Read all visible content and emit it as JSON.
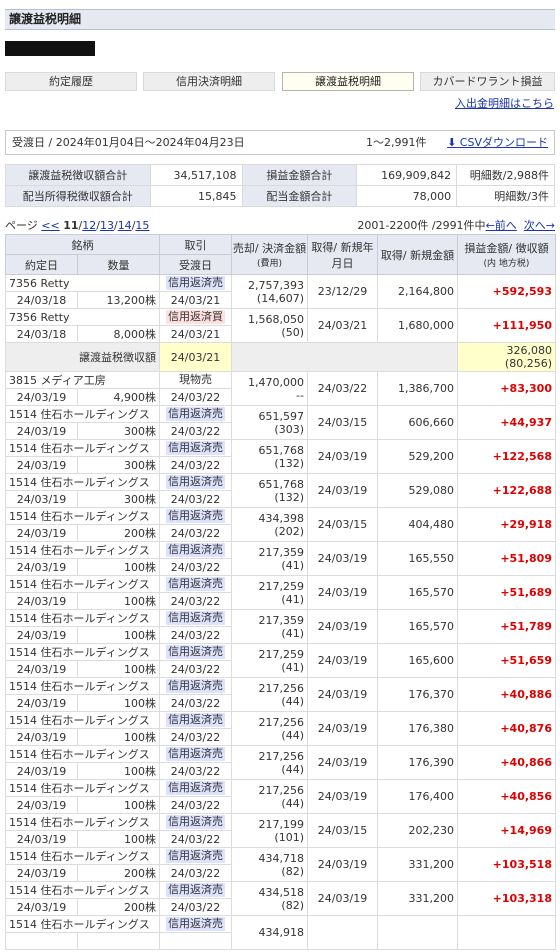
{
  "page_title": "譲渡益税明細",
  "tabs": [
    {
      "label": "約定履歴",
      "active": false
    },
    {
      "label": "信用決済明細",
      "active": false
    },
    {
      "label": "譲渡益税明細",
      "active": true
    },
    {
      "label": "カバードワラント損益",
      "active": false
    }
  ],
  "deposit_link": "入出金明細はこちら",
  "period": {
    "text": "受渡日 / 2024年01月04日～2024年04月23日",
    "count": "1～2,991件",
    "csv_label": "CSVダウンロード"
  },
  "summary": [
    {
      "label": "譲渡益税徴収額合計",
      "value": "34,517,108",
      "label2": "損益金額合計",
      "value2": "169,909,842",
      "extra": "明細数/2,988件"
    },
    {
      "label": "配当所得税徴収額合計",
      "value": "15,845",
      "label2": "配当金額合計",
      "value2": "78,000",
      "extra": "明細数/3件"
    }
  ],
  "pager": {
    "label": "ページ",
    "prev_prev": "<<",
    "current": "11",
    "pages": [
      "12",
      "13",
      "14",
      "15"
    ],
    "range": "2001-2200件 /2991件中",
    "prev": "←前へ",
    "next": "次へ→"
  },
  "headers": {
    "meigara": "銘柄",
    "yakujo": "約定日",
    "suryo": "数量",
    "torihiki": "取引",
    "ukewatashi": "受渡日",
    "baikyaku": "売却/ 決済金額",
    "hiyo": "(費用)",
    "shutoku_date": "取得/ 新規年月日",
    "shutoku_amt": "取得/ 新規金額",
    "soneki": "損益金額/ 徴収額",
    "uchi": "(内 地方税)"
  },
  "rows": [
    {
      "name": "7356 Retty",
      "date": "24/03/18",
      "qty": "13,200株",
      "type": "信用返済売",
      "badge": "blue",
      "settle": "24/03/21",
      "amount": "2,757,393",
      "fee": "(14,607)",
      "acq_date": "23/12/29",
      "acq_amt": "2,164,800",
      "pl": "+592,593"
    },
    {
      "name": "7356 Retty",
      "date": "24/03/18",
      "qty": "8,000株",
      "type": "信用返済買",
      "badge": "pink",
      "settle": "24/03/21",
      "amount": "1,568,050",
      "fee": "(50)",
      "acq_date": "24/03/21",
      "acq_amt": "1,680,000",
      "pl": "+111,950"
    },
    {
      "tax": true,
      "label": "譲渡益税徴収額",
      "settle": "24/03/21",
      "pl": "326,080",
      "local": "(80,256)"
    },
    {
      "name": "3815 メディア工房",
      "date": "24/03/19",
      "qty": "4,900株",
      "type": "現物売",
      "badge": "plain",
      "settle": "24/03/22",
      "amount": "1,470,000",
      "fee": "--",
      "acq_date": "24/03/22",
      "acq_amt": "1,386,700",
      "pl": "+83,300"
    },
    {
      "name": "1514 住石ホールディングス",
      "date": "24/03/19",
      "qty": "300株",
      "type": "信用返済売",
      "badge": "blue",
      "settle": "24/03/22",
      "amount": "651,597",
      "fee": "(303)",
      "acq_date": "24/03/15",
      "acq_amt": "606,660",
      "pl": "+44,937"
    },
    {
      "name": "1514 住石ホールディングス",
      "date": "24/03/19",
      "qty": "300株",
      "type": "信用返済売",
      "badge": "blue",
      "settle": "24/03/22",
      "amount": "651,768",
      "fee": "(132)",
      "acq_date": "24/03/19",
      "acq_amt": "529,200",
      "pl": "+122,568"
    },
    {
      "name": "1514 住石ホールディングス",
      "date": "24/03/19",
      "qty": "300株",
      "type": "信用返済売",
      "badge": "blue",
      "settle": "24/03/22",
      "amount": "651,768",
      "fee": "(132)",
      "acq_date": "24/03/19",
      "acq_amt": "529,080",
      "pl": "+122,688"
    },
    {
      "name": "1514 住石ホールディングス",
      "date": "24/03/19",
      "qty": "200株",
      "type": "信用返済売",
      "badge": "blue",
      "settle": "24/03/22",
      "amount": "434,398",
      "fee": "(202)",
      "acq_date": "24/03/15",
      "acq_amt": "404,480",
      "pl": "+29,918"
    },
    {
      "name": "1514 住石ホールディングス",
      "date": "24/03/19",
      "qty": "100株",
      "type": "信用返済売",
      "badge": "blue",
      "settle": "24/03/22",
      "amount": "217,359",
      "fee": "(41)",
      "acq_date": "24/03/19",
      "acq_amt": "165,550",
      "pl": "+51,809"
    },
    {
      "name": "1514 住石ホールディングス",
      "date": "24/03/19",
      "qty": "100株",
      "type": "信用返済売",
      "badge": "blue",
      "settle": "24/03/22",
      "amount": "217,259",
      "fee": "(41)",
      "acq_date": "24/03/19",
      "acq_amt": "165,570",
      "pl": "+51,689"
    },
    {
      "name": "1514 住石ホールディングス",
      "date": "24/03/19",
      "qty": "100株",
      "type": "信用返済売",
      "badge": "blue",
      "settle": "24/03/22",
      "amount": "217,359",
      "fee": "(41)",
      "acq_date": "24/03/19",
      "acq_amt": "165,570",
      "pl": "+51,789"
    },
    {
      "name": "1514 住石ホールディングス",
      "date": "24/03/19",
      "qty": "100株",
      "type": "信用返済売",
      "badge": "blue",
      "settle": "24/03/22",
      "amount": "217,259",
      "fee": "(41)",
      "acq_date": "24/03/19",
      "acq_amt": "165,600",
      "pl": "+51,659"
    },
    {
      "name": "1514 住石ホールディングス",
      "date": "24/03/19",
      "qty": "100株",
      "type": "信用返済売",
      "badge": "blue",
      "settle": "24/03/22",
      "amount": "217,256",
      "fee": "(44)",
      "acq_date": "24/03/19",
      "acq_amt": "176,370",
      "pl": "+40,886"
    },
    {
      "name": "1514 住石ホールディングス",
      "date": "24/03/19",
      "qty": "100株",
      "type": "信用返済売",
      "badge": "blue",
      "settle": "24/03/22",
      "amount": "217,256",
      "fee": "(44)",
      "acq_date": "24/03/19",
      "acq_amt": "176,380",
      "pl": "+40,876"
    },
    {
      "name": "1514 住石ホールディングス",
      "date": "24/03/19",
      "qty": "100株",
      "type": "信用返済売",
      "badge": "blue",
      "settle": "24/03/22",
      "amount": "217,256",
      "fee": "(44)",
      "acq_date": "24/03/19",
      "acq_amt": "176,390",
      "pl": "+40,866"
    },
    {
      "name": "1514 住石ホールディングス",
      "date": "24/03/19",
      "qty": "100株",
      "type": "信用返済売",
      "badge": "blue",
      "settle": "24/03/22",
      "amount": "217,256",
      "fee": "(44)",
      "acq_date": "24/03/19",
      "acq_amt": "176,400",
      "pl": "+40,856"
    },
    {
      "name": "1514 住石ホールディングス",
      "date": "24/03/19",
      "qty": "100株",
      "type": "信用返済売",
      "badge": "blue",
      "settle": "24/03/22",
      "amount": "217,199",
      "fee": "(101)",
      "acq_date": "24/03/15",
      "acq_amt": "202,230",
      "pl": "+14,969"
    },
    {
      "name": "1514 住石ホールディングス",
      "date": "24/03/19",
      "qty": "200株",
      "type": "信用返済売",
      "badge": "blue",
      "settle": "24/03/22",
      "amount": "434,718",
      "fee": "(82)",
      "acq_date": "24/03/19",
      "acq_amt": "331,200",
      "pl": "+103,518"
    },
    {
      "name": "1514 住石ホールディングス",
      "date": "24/03/19",
      "qty": "200株",
      "type": "信用返済売",
      "badge": "blue",
      "settle": "24/03/22",
      "amount": "434,518",
      "fee": "(82)",
      "acq_date": "24/03/19",
      "acq_amt": "331,200",
      "pl": "+103,318"
    },
    {
      "name": "1514 住石ホールディングス",
      "date": "",
      "qty": "",
      "type": "信用返済売",
      "badge": "blue",
      "settle": "",
      "amount": "434,918",
      "fee": "",
      "acq_date": "",
      "acq_amt": "",
      "pl": ""
    }
  ]
}
